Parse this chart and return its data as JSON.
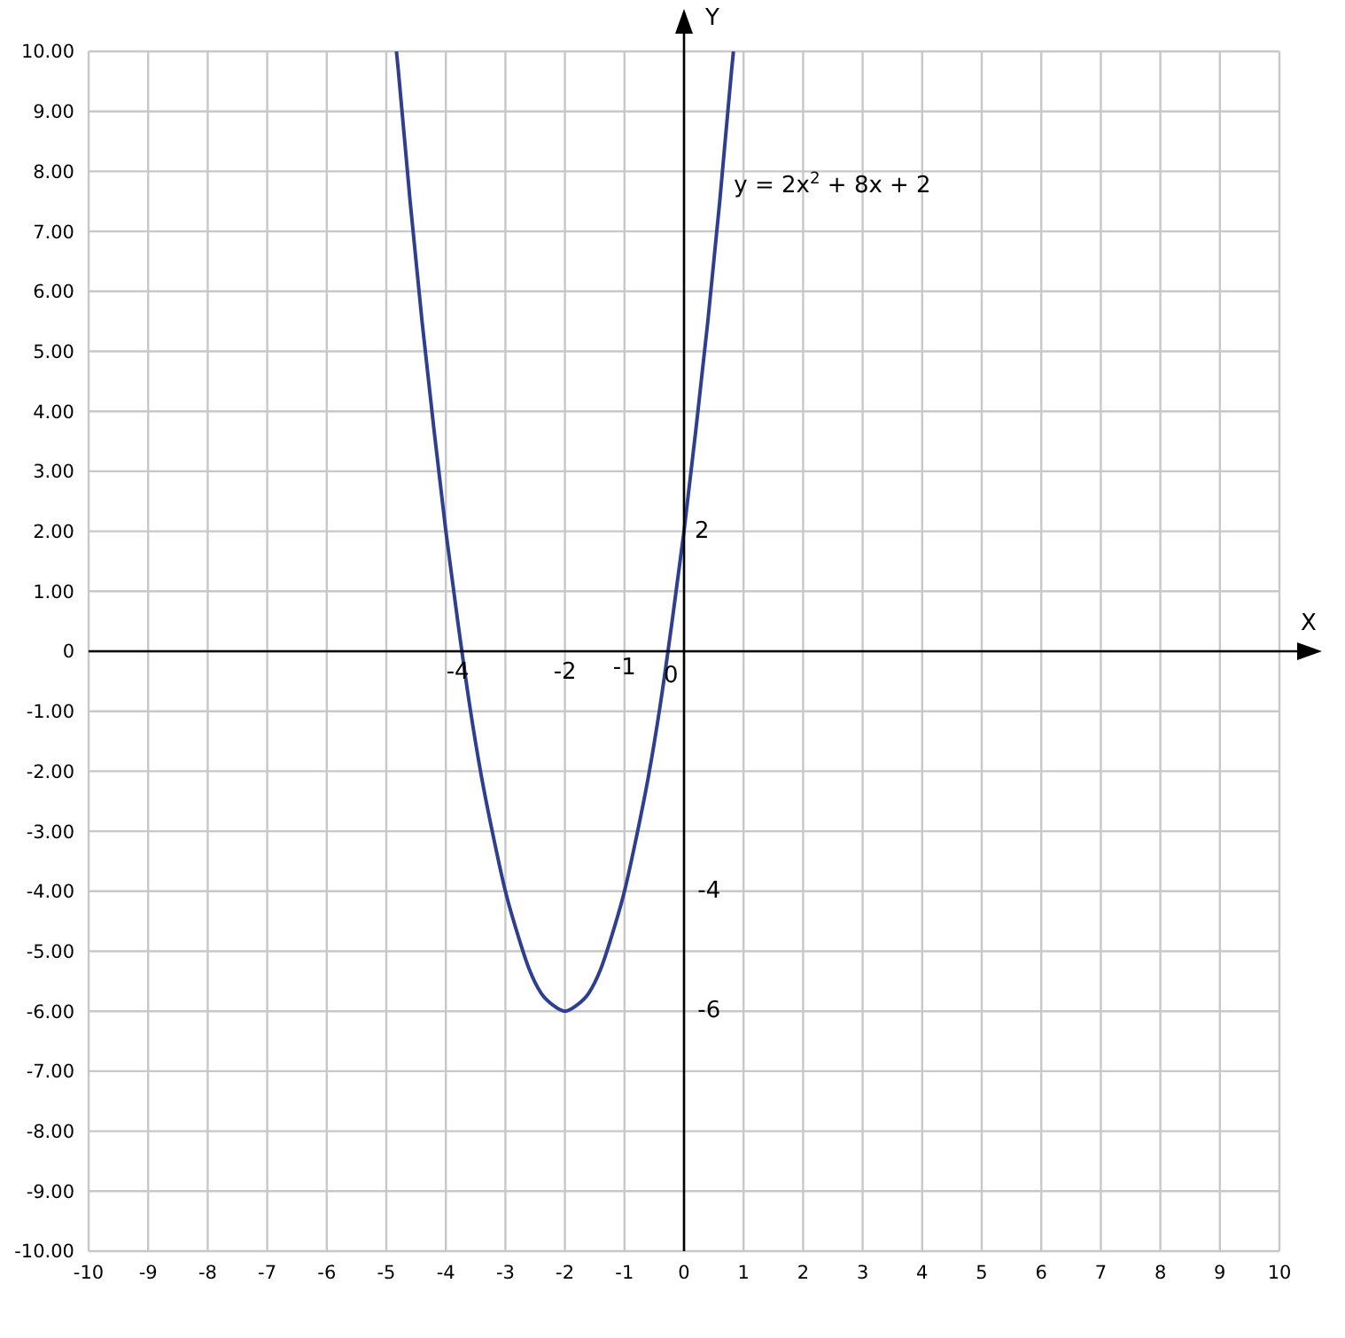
{
  "chart_data": {
    "type": "line",
    "xlabel": "X",
    "ylabel": "Y",
    "xlim": [
      -10,
      10
    ],
    "xticks": [
      -10,
      -9,
      -8,
      -7,
      -6,
      -5,
      -4,
      -3,
      -2,
      -1,
      0,
      1,
      2,
      3,
      4,
      5,
      6,
      7,
      8,
      9,
      10
    ],
    "ylim": [
      -10,
      10
    ],
    "yticks": [
      {
        "value": -10,
        "label": "-10.00"
      },
      {
        "value": -9,
        "label": "-9.00"
      },
      {
        "value": -8,
        "label": "-8.00"
      },
      {
        "value": -7,
        "label": "-7.00"
      },
      {
        "value": -6,
        "label": "-6.00"
      },
      {
        "value": -5,
        "label": "-5.00"
      },
      {
        "value": -4,
        "label": "-4.00"
      },
      {
        "value": -3,
        "label": "-3.00"
      },
      {
        "value": -2,
        "label": "-2.00"
      },
      {
        "value": -1,
        "label": "-1.00"
      },
      0,
      {
        "value": 1,
        "label": "1.00"
      },
      {
        "value": 2,
        "label": "2.00"
      },
      {
        "value": 3,
        "label": "3.00"
      },
      {
        "value": 4,
        "label": "4.00"
      },
      {
        "value": 5,
        "label": "5.00"
      },
      {
        "value": 6,
        "label": "6.00"
      },
      {
        "value": 7,
        "label": "7.00"
      },
      {
        "value": 8,
        "label": "8.00"
      },
      {
        "value": 9,
        "label": "9.00"
      },
      {
        "value": 10,
        "label": "10.00"
      }
    ],
    "grid": true,
    "legend": false,
    "marker": "none",
    "line_style": "solid",
    "series": [
      {
        "name": "y = 2x$^{2}$ + 8x + 2",
        "color": "#2e3f8f",
        "x": [
          -4.83,
          -4.8,
          -4.6,
          -4.4,
          -4.2,
          -4,
          -3.8,
          -3.6,
          -3.4,
          -3.2,
          -3,
          -2.8,
          -2.6,
          -2.4,
          -2.2,
          -2,
          -1.8,
          -1.6,
          -1.4,
          -1.2,
          -1,
          -0.8,
          -0.6,
          -0.4,
          -0.2,
          0,
          0.2,
          0.4,
          0.6,
          0.8,
          0.83
        ],
        "values": [
          10,
          9.7,
          7.5,
          5.5,
          3.7,
          2,
          0.5,
          -0.9,
          -2.1,
          -3.1,
          -4,
          -4.7,
          -5.3,
          -5.7,
          -5.9,
          -6,
          -5.9,
          -5.7,
          -5.3,
          -4.7,
          -4,
          -3.1,
          -2.1,
          -0.9,
          0.5,
          2,
          3.7,
          5.5,
          7.5,
          9.7,
          10
        ]
      }
    ],
    "annotations": [
      "-4",
      "-2",
      "-1",
      "0",
      "2",
      "-4",
      "-6"
    ]
  }
}
